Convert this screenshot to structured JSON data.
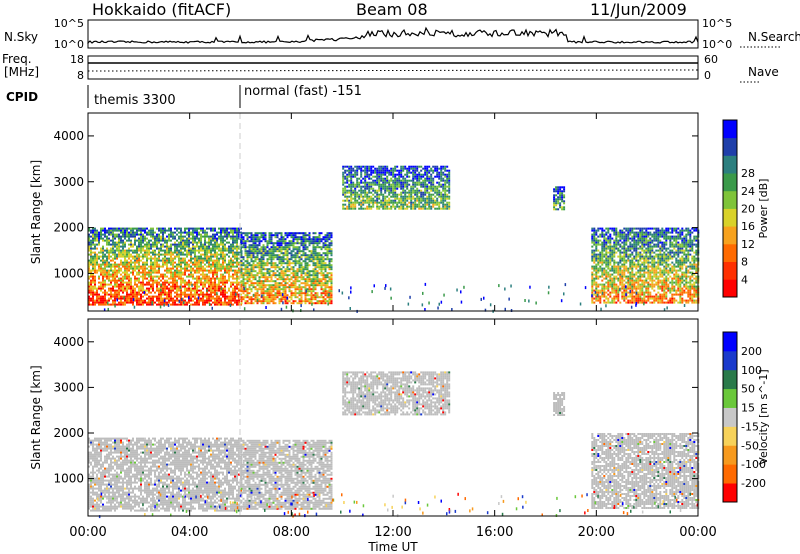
{
  "header": {
    "station": "Hokkaido (fitACF)",
    "beam": "Beam 08",
    "date": "11/Jun/2009"
  },
  "panels": {
    "nsky": {
      "label": "N.Sky",
      "tick_top": "10^5",
      "tick_bottom": "10^0",
      "right_label": "N.Search"
    },
    "freq": {
      "label_line1": "Freq.",
      "label_line2": "[MHz]",
      "left_ticks": [
        "18",
        "8"
      ],
      "right_ticks": [
        "60",
        "0"
      ],
      "right_label": "Nave"
    },
    "cpid": {
      "label": "CPID",
      "segments": [
        "themis 3300",
        "normal (fast) -151"
      ]
    }
  },
  "colors": {
    "power_scale": [
      "#0000ff",
      "#1f3faa",
      "#2c7f7f",
      "#3a9a4a",
      "#7fc43a",
      "#d9d22a",
      "#f7a21e",
      "#ff6a00",
      "#ff3000",
      "#ff0000"
    ],
    "velocity_scale": [
      "#0000ff",
      "#1a3acc",
      "#2a7a4a",
      "#6ac83a",
      "#c8c8c8",
      "#f7d25a",
      "#f79a1e",
      "#ff6a00",
      "#ff0000"
    ],
    "ground_scatter": "#bdbdbd"
  },
  "chart_data": [
    {
      "type": "heatmap",
      "name": "power",
      "title": "",
      "xlabel": "Time UT",
      "ylabel": "Slant Range [km]",
      "x_ticks": [
        "00:00",
        "04:00",
        "08:00",
        "12:00",
        "16:00",
        "20:00",
        "00:00"
      ],
      "y_ticks": [
        "1000",
        "2000",
        "3000",
        "4000"
      ],
      "xlim_hours": [
        0,
        24
      ],
      "ylim_km": [
        180,
        4500
      ],
      "colorbar": {
        "label": "Power [dB]",
        "ticks": [
          "4",
          "8",
          "12",
          "16",
          "20",
          "24",
          "28"
        ]
      },
      "scatter_regions": [
        {
          "t0": 0.0,
          "t1": 6.0,
          "r0": 300,
          "r1": 2000,
          "level": 0.75
        },
        {
          "t0": 6.0,
          "t1": 9.6,
          "r0": 350,
          "r1": 1900,
          "level": 0.6
        },
        {
          "t0": 10.0,
          "t1": 14.2,
          "r0": 2400,
          "r1": 3350,
          "level": 0.4
        },
        {
          "t0": 18.3,
          "t1": 18.7,
          "r0": 2400,
          "r1": 2900,
          "level": 0.35
        },
        {
          "t0": 19.8,
          "t1": 24.0,
          "r0": 350,
          "r1": 2000,
          "level": 0.6
        }
      ]
    },
    {
      "type": "heatmap",
      "name": "velocity",
      "title": "",
      "xlabel": "Time UT",
      "ylabel": "Slant Range [km]",
      "x_ticks": [
        "00:00",
        "04:00",
        "08:00",
        "12:00",
        "16:00",
        "20:00",
        "00:00"
      ],
      "y_ticks": [
        "1000",
        "2000",
        "3000",
        "4000"
      ],
      "xlim_hours": [
        0,
        24
      ],
      "ylim_km": [
        180,
        4500
      ],
      "colorbar": {
        "label": "Velocity [m s^-1]",
        "ticks": [
          "200",
          "100",
          "50",
          "15",
          "-15",
          "-50",
          "-100",
          "-200"
        ]
      },
      "scatter_regions": [
        {
          "t0": 0.0,
          "t1": 6.0,
          "r0": 300,
          "r1": 1900,
          "kind": "ground"
        },
        {
          "t0": 6.0,
          "t1": 9.6,
          "r0": 350,
          "r1": 1850,
          "kind": "ground"
        },
        {
          "t0": 10.0,
          "t1": 14.2,
          "r0": 2400,
          "r1": 3350,
          "kind": "ground"
        },
        {
          "t0": 18.3,
          "t1": 18.7,
          "r0": 2400,
          "r1": 2900,
          "kind": "ground"
        },
        {
          "t0": 19.8,
          "t1": 24.0,
          "r0": 350,
          "r1": 2000,
          "kind": "ground"
        }
      ]
    }
  ]
}
